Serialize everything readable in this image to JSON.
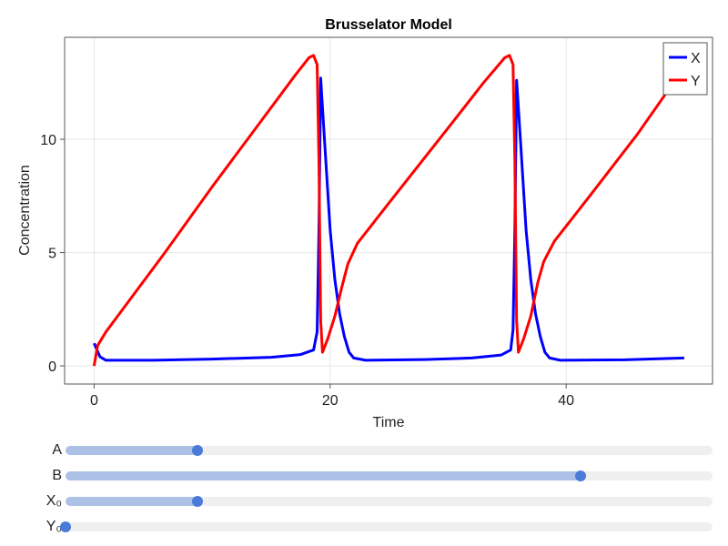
{
  "chart_data": {
    "type": "line",
    "title": "Brusselator Model",
    "xlabel": "Time",
    "ylabel": "Concentration",
    "xlim": [
      -2.5,
      52.4
    ],
    "ylim": [
      -0.8,
      14.5
    ],
    "xticks": [
      0,
      20,
      40
    ],
    "yticks": [
      0,
      5,
      10
    ],
    "grid": true,
    "legend_placement": "top-right",
    "series": [
      {
        "name": "X",
        "color": "#0000ff",
        "points": [
          [
            0,
            1
          ],
          [
            0.5,
            0.4
          ],
          [
            1,
            0.25
          ],
          [
            5,
            0.25
          ],
          [
            10,
            0.3
          ],
          [
            15,
            0.38
          ],
          [
            17.5,
            0.5
          ],
          [
            18.6,
            0.7
          ],
          [
            18.9,
            1.5
          ],
          [
            19.05,
            6
          ],
          [
            19.2,
            12.7
          ],
          [
            19.4,
            11
          ],
          [
            19.7,
            8.5
          ],
          [
            20,
            6
          ],
          [
            20.4,
            3.8
          ],
          [
            20.8,
            2.3
          ],
          [
            21.2,
            1.3
          ],
          [
            21.6,
            0.6
          ],
          [
            22,
            0.35
          ],
          [
            23,
            0.25
          ],
          [
            28,
            0.28
          ],
          [
            32,
            0.35
          ],
          [
            34.5,
            0.48
          ],
          [
            35.3,
            0.7
          ],
          [
            35.5,
            1.6
          ],
          [
            35.65,
            6
          ],
          [
            35.8,
            12.6
          ],
          [
            36,
            11
          ],
          [
            36.3,
            8.5
          ],
          [
            36.6,
            6
          ],
          [
            37,
            3.8
          ],
          [
            37.4,
            2.3
          ],
          [
            37.8,
            1.3
          ],
          [
            38.2,
            0.6
          ],
          [
            38.6,
            0.35
          ],
          [
            39.5,
            0.25
          ],
          [
            45,
            0.27
          ],
          [
            50,
            0.35
          ]
        ]
      },
      {
        "name": "Y",
        "color": "#ff0000",
        "points": [
          [
            0,
            0
          ],
          [
            0.3,
            0.9
          ],
          [
            1,
            1.5
          ],
          [
            3,
            2.9
          ],
          [
            6,
            5
          ],
          [
            10,
            7.9
          ],
          [
            14,
            10.7
          ],
          [
            17,
            12.8
          ],
          [
            18.2,
            13.6
          ],
          [
            18.6,
            13.7
          ],
          [
            18.9,
            13.3
          ],
          [
            19.05,
            9
          ],
          [
            19.2,
            2
          ],
          [
            19.35,
            0.6
          ],
          [
            19.8,
            1.2
          ],
          [
            20.4,
            2.2
          ],
          [
            21,
            3.5
          ],
          [
            21.5,
            4.5
          ],
          [
            22.3,
            5.4
          ],
          [
            25,
            7.2
          ],
          [
            30,
            10.5
          ],
          [
            33,
            12.5
          ],
          [
            34.8,
            13.6
          ],
          [
            35.2,
            13.7
          ],
          [
            35.5,
            13.3
          ],
          [
            35.65,
            9
          ],
          [
            35.8,
            2
          ],
          [
            35.95,
            0.6
          ],
          [
            36.4,
            1.2
          ],
          [
            37,
            2.2
          ],
          [
            37.6,
            3.7
          ],
          [
            38.1,
            4.6
          ],
          [
            39,
            5.5
          ],
          [
            42,
            7.5
          ],
          [
            46,
            10.2
          ],
          [
            49.5,
            12.8
          ]
        ]
      }
    ]
  },
  "sliders": [
    {
      "label": "A",
      "fraction": 0.204
    },
    {
      "label": "B",
      "fraction": 0.796
    },
    {
      "label": "X₀",
      "fraction": 0.204
    },
    {
      "label": "Y₀",
      "fraction": 0.0
    }
  ]
}
